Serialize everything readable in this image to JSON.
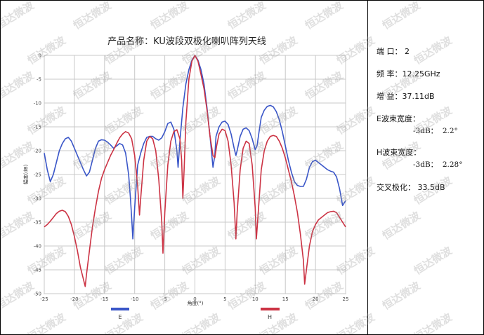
{
  "chart_data": {
    "type": "line",
    "title": "产品名称：KU波段双极化喇叭阵列天线",
    "xlabel": "角度(°)",
    "ylabel": "幅度(dB)",
    "xlim": [
      -25,
      25
    ],
    "ylim": [
      -50,
      0
    ],
    "xticks": [
      -25,
      -20,
      -15,
      -10,
      -5,
      0,
      5,
      10,
      15,
      20,
      25
    ],
    "yticks": [
      0,
      -5,
      -10,
      -15,
      -20,
      -25,
      -30,
      -35,
      -40,
      -45,
      -50
    ],
    "grid": true,
    "legend_position": "bottom",
    "series": [
      {
        "name": "E",
        "color": "#3a56c8",
        "points": [
          [
            -25,
            -20.5
          ],
          [
            -24.5,
            -24
          ],
          [
            -24,
            -26.5
          ],
          [
            -23.5,
            -25
          ],
          [
            -23,
            -22.5
          ],
          [
            -22.5,
            -20
          ],
          [
            -22,
            -18.5
          ],
          [
            -21.5,
            -17.5
          ],
          [
            -21,
            -17.2
          ],
          [
            -20.5,
            -18
          ],
          [
            -20,
            -19.5
          ],
          [
            -19.5,
            -21
          ],
          [
            -19,
            -22.5
          ],
          [
            -18.5,
            -24
          ],
          [
            -18,
            -25.3
          ],
          [
            -17.5,
            -24.5
          ],
          [
            -17,
            -22
          ],
          [
            -16.5,
            -19.5
          ],
          [
            -16,
            -18
          ],
          [
            -15.5,
            -17.7
          ],
          [
            -15,
            -17.8
          ],
          [
            -14.5,
            -18.2
          ],
          [
            -14,
            -18.8
          ],
          [
            -13.5,
            -19.5
          ],
          [
            -13,
            -19
          ],
          [
            -12.5,
            -18.5
          ],
          [
            -12,
            -18.8
          ],
          [
            -11.5,
            -20.5
          ],
          [
            -11,
            -25
          ],
          [
            -10.7,
            -30
          ],
          [
            -10.5,
            -34
          ],
          [
            -10.3,
            -38.5
          ],
          [
            -10,
            -32
          ],
          [
            -9.5,
            -23
          ],
          [
            -9,
            -20.5
          ],
          [
            -8.5,
            -18.5
          ],
          [
            -8,
            -17.2
          ],
          [
            -7.5,
            -17
          ],
          [
            -7,
            -17
          ],
          [
            -6.5,
            -17.5
          ],
          [
            -6,
            -17.8
          ],
          [
            -5.5,
            -17.3
          ],
          [
            -5,
            -16
          ],
          [
            -4.5,
            -14.3
          ],
          [
            -4,
            -14
          ],
          [
            -3.5,
            -15.5
          ],
          [
            -3,
            -20
          ],
          [
            -2.8,
            -23.5
          ],
          [
            -2.5,
            -18
          ],
          [
            -2,
            -11
          ],
          [
            -1.5,
            -6
          ],
          [
            -1,
            -3
          ],
          [
            -0.5,
            -1
          ],
          [
            0,
            0
          ],
          [
            0.5,
            -1
          ],
          [
            1,
            -3
          ],
          [
            1.5,
            -6
          ],
          [
            2,
            -11
          ],
          [
            2.5,
            -17
          ],
          [
            3,
            -23.5
          ],
          [
            3.3,
            -21
          ],
          [
            3.5,
            -17
          ],
          [
            4,
            -15
          ],
          [
            4.5,
            -14
          ],
          [
            5,
            -13.8
          ],
          [
            5.5,
            -14.5
          ],
          [
            6,
            -16.5
          ],
          [
            6.5,
            -19.5
          ],
          [
            6.8,
            -21
          ],
          [
            7,
            -20
          ],
          [
            7.5,
            -17
          ],
          [
            8,
            -15.5
          ],
          [
            8.5,
            -15.2
          ],
          [
            9,
            -15.8
          ],
          [
            9.5,
            -17.5
          ],
          [
            10,
            -19.8
          ],
          [
            10.3,
            -19
          ],
          [
            10.7,
            -15.5
          ],
          [
            11,
            -13
          ],
          [
            11.5,
            -11.5
          ],
          [
            12,
            -10.7
          ],
          [
            12.5,
            -10.5
          ],
          [
            13,
            -10.8
          ],
          [
            13.5,
            -11.8
          ],
          [
            14,
            -13.5
          ],
          [
            14.5,
            -16
          ],
          [
            15,
            -19
          ],
          [
            15.5,
            -22
          ],
          [
            16,
            -24.5
          ],
          [
            16.5,
            -26.5
          ],
          [
            17,
            -27.3
          ],
          [
            17.5,
            -27.5
          ],
          [
            18,
            -27.5
          ],
          [
            18.5,
            -26
          ],
          [
            19,
            -23.5
          ],
          [
            19.5,
            -22.3
          ],
          [
            20,
            -22
          ],
          [
            20.5,
            -22.5
          ],
          [
            21,
            -23
          ],
          [
            21.5,
            -23.5
          ],
          [
            22,
            -24
          ],
          [
            22.5,
            -24.3
          ],
          [
            23,
            -24.5
          ],
          [
            23.5,
            -25.5
          ],
          [
            24,
            -28
          ],
          [
            24.5,
            -31.5
          ],
          [
            25,
            -30.5
          ]
        ]
      },
      {
        "name": "H",
        "color": "#cc3344",
        "points": [
          [
            -25,
            -36
          ],
          [
            -24.5,
            -35.5
          ],
          [
            -24,
            -34.8
          ],
          [
            -23.5,
            -34
          ],
          [
            -23,
            -33.2
          ],
          [
            -22.5,
            -32.7
          ],
          [
            -22,
            -32.5
          ],
          [
            -21.5,
            -32.8
          ],
          [
            -21,
            -33.8
          ],
          [
            -20.5,
            -35.5
          ],
          [
            -20,
            -38
          ],
          [
            -19.5,
            -41
          ],
          [
            -19,
            -44.5
          ],
          [
            -18.5,
            -47
          ],
          [
            -18.2,
            -48.5
          ],
          [
            -18,
            -46
          ],
          [
            -17.5,
            -41
          ],
          [
            -17,
            -36
          ],
          [
            -16.5,
            -32
          ],
          [
            -16,
            -28.5
          ],
          [
            -15.5,
            -25.8
          ],
          [
            -15,
            -24
          ],
          [
            -14.5,
            -22.5
          ],
          [
            -14,
            -21
          ],
          [
            -13.5,
            -19.8
          ],
          [
            -13,
            -18.5
          ],
          [
            -12.5,
            -17.3
          ],
          [
            -12,
            -16.5
          ],
          [
            -11.5,
            -16
          ],
          [
            -11,
            -16.3
          ],
          [
            -10.5,
            -17.5
          ],
          [
            -10,
            -21
          ],
          [
            -9.5,
            -27.5
          ],
          [
            -9.2,
            -33.5
          ],
          [
            -9,
            -30
          ],
          [
            -8.5,
            -22
          ],
          [
            -8,
            -18
          ],
          [
            -7.5,
            -17
          ],
          [
            -7,
            -17.5
          ],
          [
            -6.5,
            -20
          ],
          [
            -6,
            -26
          ],
          [
            -5.5,
            -35
          ],
          [
            -5.3,
            -41.5
          ],
          [
            -5,
            -33
          ],
          [
            -4.5,
            -23
          ],
          [
            -4,
            -18
          ],
          [
            -3.5,
            -16
          ],
          [
            -3,
            -15.6
          ],
          [
            -2.5,
            -17.5
          ],
          [
            -2.2,
            -22
          ],
          [
            -2,
            -30
          ],
          [
            -1.8,
            -24
          ],
          [
            -1.5,
            -14
          ],
          [
            -1,
            -5
          ],
          [
            -0.5,
            -1.2
          ],
          [
            0,
            0
          ],
          [
            0.5,
            -1.2
          ],
          [
            1,
            -4
          ],
          [
            1.5,
            -7
          ],
          [
            2,
            -11.5
          ],
          [
            2.5,
            -17
          ],
          [
            3,
            -21
          ],
          [
            3.3,
            -21.5
          ],
          [
            3.6,
            -19
          ],
          [
            4,
            -16.5
          ],
          [
            4.5,
            -15.5
          ],
          [
            5,
            -15.8
          ],
          [
            5.5,
            -18
          ],
          [
            6,
            -23
          ],
          [
            6.5,
            -31
          ],
          [
            6.8,
            -38.5
          ],
          [
            7,
            -33
          ],
          [
            7.5,
            -24
          ],
          [
            8,
            -19.5
          ],
          [
            8.5,
            -18
          ],
          [
            9,
            -18.5
          ],
          [
            9.5,
            -23
          ],
          [
            10,
            -32
          ],
          [
            10.2,
            -38.5
          ],
          [
            10.5,
            -33
          ],
          [
            11,
            -24
          ],
          [
            11.5,
            -20
          ],
          [
            12,
            -18
          ],
          [
            12.5,
            -17
          ],
          [
            13,
            -16.8
          ],
          [
            13.5,
            -17
          ],
          [
            14,
            -18
          ],
          [
            14.5,
            -19.5
          ],
          [
            15,
            -21.5
          ],
          [
            15.5,
            -24
          ],
          [
            16,
            -26.5
          ],
          [
            16.5,
            -29.5
          ],
          [
            17,
            -33
          ],
          [
            17.5,
            -37.5
          ],
          [
            18,
            -43
          ],
          [
            18.2,
            -48
          ],
          [
            18.5,
            -45
          ],
          [
            19,
            -40
          ],
          [
            19.5,
            -37
          ],
          [
            20,
            -35.5
          ],
          [
            20.5,
            -34.5
          ],
          [
            21,
            -34
          ],
          [
            21.5,
            -33.5
          ],
          [
            22,
            -33
          ],
          [
            22.5,
            -32.8
          ],
          [
            23,
            -32.7
          ],
          [
            23.5,
            -33
          ],
          [
            24,
            -34
          ],
          [
            24.5,
            -35
          ],
          [
            25,
            -36
          ]
        ]
      }
    ]
  },
  "info": {
    "port": "端 口： 2",
    "freq": "频 率：12.25GHz",
    "gain": "增 益：37.11dB",
    "e_beam_title": "E波束宽度：",
    "e_beam_value": "-3dB：  2.2°",
    "h_beam_title": "H波束宽度：",
    "h_beam_value": "-3dB：  2.28°",
    "xpol": "交叉极化： 33.5dB"
  },
  "watermark": {
    "text": "恒达微波",
    "color": "#969696"
  }
}
